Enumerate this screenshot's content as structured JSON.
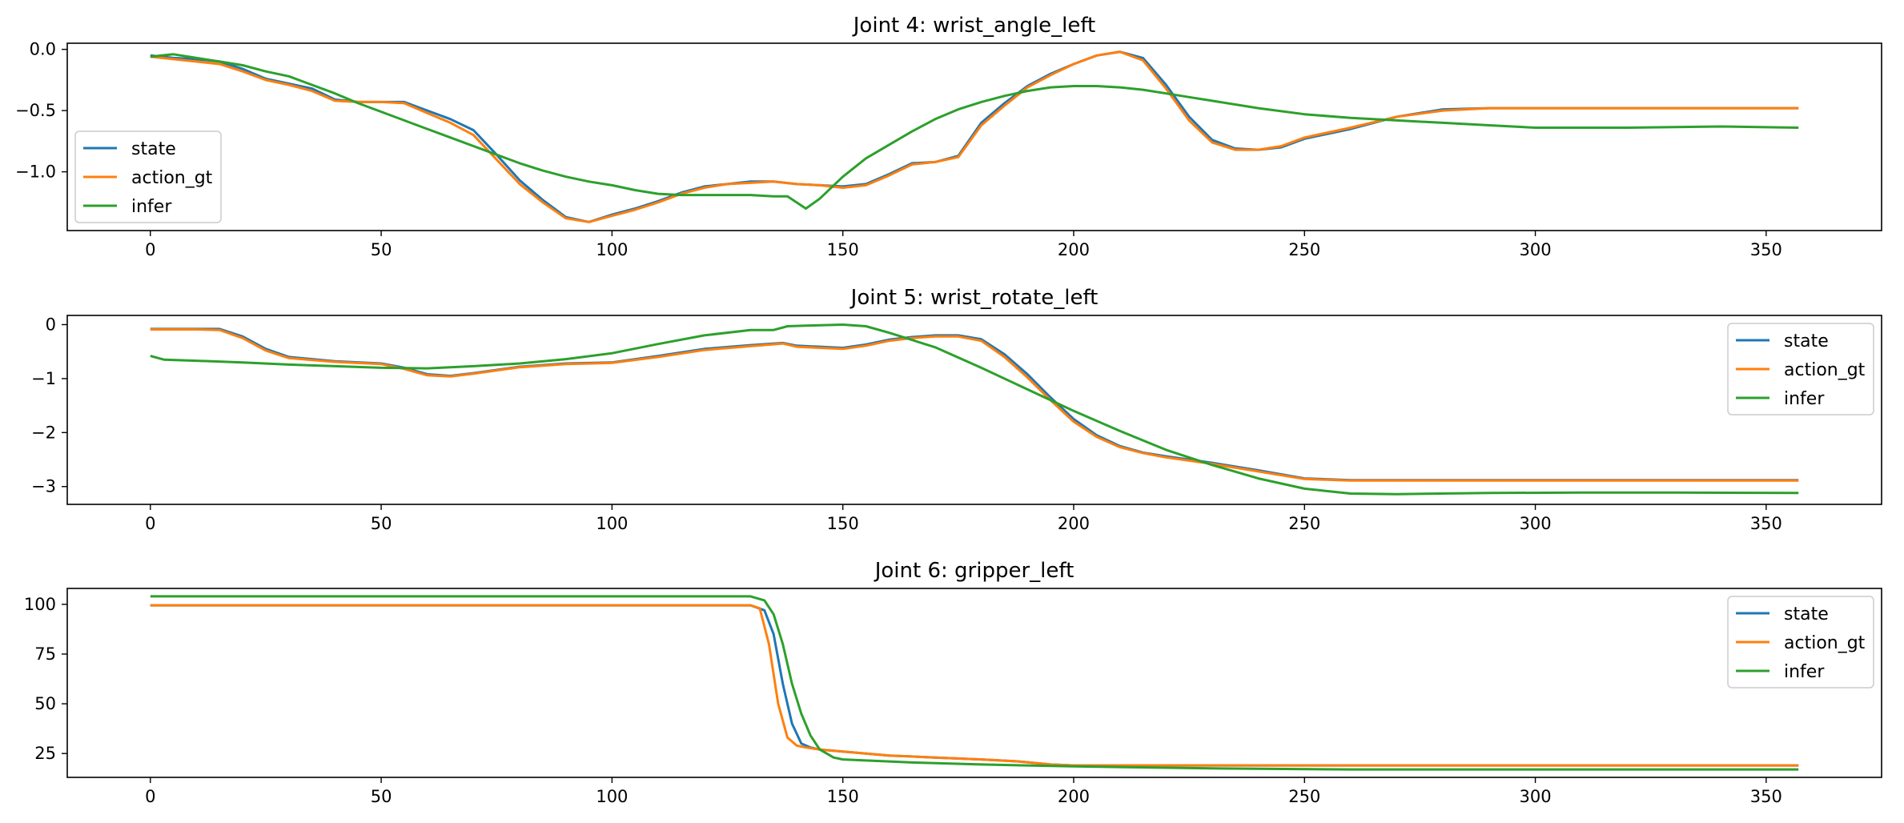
{
  "chart_data": [
    {
      "type": "line",
      "title": "Joint 4: wrist_angle_left",
      "xlim": [
        -18,
        375
      ],
      "ylim": [
        -1.48,
        0.05
      ],
      "xticks": [
        0,
        50,
        100,
        150,
        200,
        250,
        300,
        350
      ],
      "yticks": [
        0.0,
        -0.5,
        -1.0
      ],
      "ytick_labels": [
        "0.0",
        "−0.5",
        "−1.0"
      ],
      "xtick_labels": [
        "0",
        "50",
        "100",
        "150",
        "200",
        "250",
        "300",
        "350"
      ],
      "legend": "bottom-left",
      "series": [
        {
          "name": "state",
          "color": "#1f77b4",
          "x": [
            0,
            5,
            10,
            15,
            20,
            25,
            30,
            35,
            40,
            45,
            50,
            55,
            60,
            65,
            70,
            75,
            80,
            85,
            90,
            95,
            100,
            105,
            110,
            115,
            120,
            125,
            130,
            135,
            140,
            145,
            150,
            155,
            160,
            165,
            170,
            175,
            180,
            185,
            190,
            195,
            200,
            205,
            210,
            215,
            220,
            225,
            230,
            235,
            240,
            245,
            250,
            260,
            270,
            280,
            290,
            300,
            320,
            340,
            357
          ],
          "y": [
            -0.05,
            -0.07,
            -0.08,
            -0.1,
            -0.16,
            -0.24,
            -0.28,
            -0.32,
            -0.41,
            -0.43,
            -0.43,
            -0.43,
            -0.5,
            -0.57,
            -0.66,
            -0.86,
            -1.07,
            -1.23,
            -1.37,
            -1.41,
            -1.35,
            -1.3,
            -1.24,
            -1.17,
            -1.12,
            -1.1,
            -1.08,
            -1.08,
            -1.1,
            -1.11,
            -1.12,
            -1.1,
            -1.02,
            -0.93,
            -0.92,
            -0.87,
            -0.6,
            -0.44,
            -0.3,
            -0.2,
            -0.12,
            -0.05,
            -0.02,
            -0.07,
            -0.29,
            -0.55,
            -0.74,
            -0.81,
            -0.82,
            -0.8,
            -0.73,
            -0.65,
            -0.55,
            -0.49,
            -0.48,
            -0.48,
            -0.48,
            -0.48,
            -0.48
          ]
        },
        {
          "name": "action_gt",
          "color": "#ff7f0e",
          "x": [
            0,
            5,
            10,
            15,
            20,
            25,
            30,
            35,
            40,
            45,
            50,
            55,
            60,
            65,
            70,
            75,
            80,
            85,
            90,
            95,
            100,
            105,
            110,
            115,
            120,
            125,
            130,
            135,
            140,
            145,
            150,
            155,
            160,
            165,
            170,
            175,
            180,
            185,
            190,
            195,
            200,
            205,
            210,
            215,
            220,
            225,
            230,
            235,
            240,
            245,
            250,
            260,
            270,
            280,
            290,
            300,
            320,
            340,
            357
          ],
          "y": [
            -0.06,
            -0.08,
            -0.1,
            -0.12,
            -0.18,
            -0.25,
            -0.29,
            -0.34,
            -0.42,
            -0.43,
            -0.43,
            -0.44,
            -0.52,
            -0.6,
            -0.7,
            -0.9,
            -1.1,
            -1.25,
            -1.38,
            -1.41,
            -1.36,
            -1.31,
            -1.25,
            -1.18,
            -1.13,
            -1.1,
            -1.09,
            -1.08,
            -1.1,
            -1.11,
            -1.13,
            -1.11,
            -1.03,
            -0.94,
            -0.92,
            -0.88,
            -0.62,
            -0.46,
            -0.31,
            -0.21,
            -0.12,
            -0.05,
            -0.02,
            -0.09,
            -0.32,
            -0.58,
            -0.76,
            -0.82,
            -0.82,
            -0.79,
            -0.72,
            -0.64,
            -0.55,
            -0.5,
            -0.48,
            -0.48,
            -0.48,
            -0.48,
            -0.48
          ]
        },
        {
          "name": "infer",
          "color": "#2ca02c",
          "x": [
            0,
            5,
            10,
            15,
            20,
            25,
            30,
            35,
            40,
            45,
            50,
            55,
            60,
            65,
            70,
            75,
            80,
            85,
            90,
            95,
            100,
            105,
            110,
            115,
            120,
            125,
            130,
            135,
            138,
            142,
            145,
            150,
            155,
            160,
            165,
            170,
            175,
            180,
            185,
            190,
            195,
            200,
            205,
            210,
            215,
            220,
            225,
            230,
            240,
            250,
            260,
            270,
            280,
            290,
            300,
            320,
            340,
            357
          ],
          "y": [
            -0.06,
            -0.04,
            -0.07,
            -0.1,
            -0.13,
            -0.18,
            -0.22,
            -0.29,
            -0.36,
            -0.44,
            -0.51,
            -0.58,
            -0.65,
            -0.72,
            -0.79,
            -0.86,
            -0.93,
            -0.99,
            -1.04,
            -1.08,
            -1.11,
            -1.15,
            -1.18,
            -1.19,
            -1.19,
            -1.19,
            -1.19,
            -1.2,
            -1.2,
            -1.3,
            -1.22,
            -1.04,
            -0.89,
            -0.78,
            -0.67,
            -0.57,
            -0.49,
            -0.43,
            -0.38,
            -0.34,
            -0.31,
            -0.3,
            -0.3,
            -0.31,
            -0.33,
            -0.36,
            -0.39,
            -0.42,
            -0.48,
            -0.53,
            -0.56,
            -0.58,
            -0.6,
            -0.62,
            -0.64,
            -0.64,
            -0.63,
            -0.64
          ]
        }
      ]
    },
    {
      "type": "line",
      "title": "Joint 5: wrist_rotate_left",
      "xlim": [
        -18,
        375
      ],
      "ylim": [
        -3.33,
        0.17
      ],
      "xticks": [
        0,
        50,
        100,
        150,
        200,
        250,
        300,
        350
      ],
      "yticks": [
        0,
        -1,
        -2,
        -3
      ],
      "ytick_labels": [
        "0",
        "−1",
        "−2",
        "−3"
      ],
      "xtick_labels": [
        "0",
        "50",
        "100",
        "150",
        "200",
        "250",
        "300",
        "350"
      ],
      "legend": "top-right",
      "series": [
        {
          "name": "state",
          "color": "#1f77b4",
          "x": [
            0,
            5,
            10,
            15,
            20,
            25,
            30,
            40,
            50,
            55,
            60,
            65,
            70,
            80,
            90,
            100,
            110,
            120,
            130,
            137,
            140,
            150,
            155,
            160,
            165,
            170,
            175,
            180,
            185,
            190,
            195,
            200,
            205,
            210,
            215,
            220,
            230,
            240,
            250,
            260,
            280,
            300,
            330,
            357
          ],
          "y": [
            -0.08,
            -0.08,
            -0.08,
            -0.08,
            -0.22,
            -0.45,
            -0.6,
            -0.68,
            -0.72,
            -0.8,
            -0.92,
            -0.95,
            -0.9,
            -0.78,
            -0.72,
            -0.7,
            -0.58,
            -0.45,
            -0.38,
            -0.34,
            -0.39,
            -0.43,
            -0.37,
            -0.28,
            -0.23,
            -0.2,
            -0.2,
            -0.27,
            -0.55,
            -0.92,
            -1.35,
            -1.75,
            -2.05,
            -2.25,
            -2.37,
            -2.44,
            -2.56,
            -2.7,
            -2.85,
            -2.88,
            -2.88,
            -2.88,
            -2.88,
            -2.88
          ]
        },
        {
          "name": "action_gt",
          "color": "#ff7f0e",
          "x": [
            0,
            5,
            10,
            15,
            20,
            25,
            30,
            40,
            50,
            55,
            60,
            65,
            70,
            80,
            90,
            100,
            110,
            120,
            130,
            137,
            140,
            150,
            155,
            160,
            165,
            170,
            175,
            180,
            185,
            190,
            195,
            200,
            205,
            210,
            215,
            220,
            230,
            240,
            250,
            260,
            280,
            300,
            330,
            357
          ],
          "y": [
            -0.09,
            -0.09,
            -0.09,
            -0.1,
            -0.25,
            -0.48,
            -0.62,
            -0.69,
            -0.73,
            -0.82,
            -0.94,
            -0.96,
            -0.91,
            -0.79,
            -0.73,
            -0.71,
            -0.6,
            -0.47,
            -0.4,
            -0.35,
            -0.41,
            -0.45,
            -0.39,
            -0.3,
            -0.25,
            -0.22,
            -0.22,
            -0.3,
            -0.6,
            -0.98,
            -1.4,
            -1.8,
            -2.08,
            -2.27,
            -2.38,
            -2.46,
            -2.58,
            -2.72,
            -2.86,
            -2.89,
            -2.89,
            -2.89,
            -2.89,
            -2.89
          ]
        },
        {
          "name": "infer",
          "color": "#2ca02c",
          "x": [
            0,
            3,
            10,
            20,
            30,
            40,
            50,
            60,
            70,
            80,
            90,
            100,
            110,
            120,
            130,
            135,
            138,
            142,
            150,
            155,
            160,
            170,
            180,
            190,
            200,
            210,
            220,
            230,
            240,
            250,
            260,
            270,
            290,
            310,
            330,
            357
          ],
          "y": [
            -0.58,
            -0.65,
            -0.67,
            -0.7,
            -0.74,
            -0.77,
            -0.8,
            -0.81,
            -0.77,
            -0.72,
            -0.64,
            -0.53,
            -0.36,
            -0.2,
            -0.1,
            -0.1,
            -0.03,
            -0.02,
            0.0,
            -0.03,
            -0.15,
            -0.42,
            -0.8,
            -1.2,
            -1.6,
            -1.97,
            -2.32,
            -2.6,
            -2.85,
            -3.04,
            -3.13,
            -3.14,
            -3.12,
            -3.11,
            -3.11,
            -3.12
          ]
        }
      ]
    },
    {
      "type": "line",
      "title": "Joint 6: gripper_left",
      "xlim": [
        -18,
        375
      ],
      "ylim": [
        13,
        108
      ],
      "xticks": [
        0,
        50,
        100,
        150,
        200,
        250,
        300,
        350
      ],
      "yticks": [
        100,
        75,
        50,
        25
      ],
      "ytick_labels": [
        "100",
        "75",
        "50",
        "25"
      ],
      "xtick_labels": [
        "0",
        "50",
        "100",
        "150",
        "200",
        "250",
        "300",
        "350"
      ],
      "legend": "top-right",
      "series": [
        {
          "name": "state",
          "color": "#1f77b4",
          "x": [
            0,
            50,
            100,
            130,
            133,
            135,
            137,
            139,
            141,
            143,
            145,
            150,
            160,
            170,
            180,
            188,
            195,
            200,
            250,
            300,
            357
          ],
          "y": [
            99.5,
            99.5,
            99.5,
            99.5,
            97,
            85,
            60,
            40,
            30,
            28,
            27,
            26,
            24,
            23,
            22,
            21,
            19.5,
            19,
            19,
            19,
            19
          ]
        },
        {
          "name": "action_gt",
          "color": "#ff7f0e",
          "x": [
            0,
            50,
            100,
            130,
            132,
            134,
            136,
            138,
            140,
            142,
            145,
            150,
            160,
            170,
            180,
            188,
            195,
            200,
            250,
            300,
            357
          ],
          "y": [
            99.5,
            99.5,
            99.5,
            99.5,
            98,
            80,
            50,
            33,
            29,
            28,
            27,
            26,
            24,
            23,
            22,
            21,
            19.5,
            19,
            19,
            19,
            19
          ]
        },
        {
          "name": "infer",
          "color": "#2ca02c",
          "x": [
            0,
            50,
            100,
            125,
            130,
            133,
            135,
            137,
            139,
            141,
            143,
            145,
            148,
            150,
            155,
            165,
            180,
            200,
            230,
            260,
            300,
            357
          ],
          "y": [
            104,
            104,
            104,
            104,
            104,
            102,
            95,
            80,
            60,
            45,
            34,
            27,
            23,
            22,
            21.5,
            20.5,
            19.5,
            18.5,
            17.5,
            17,
            17,
            17
          ]
        }
      ]
    }
  ]
}
